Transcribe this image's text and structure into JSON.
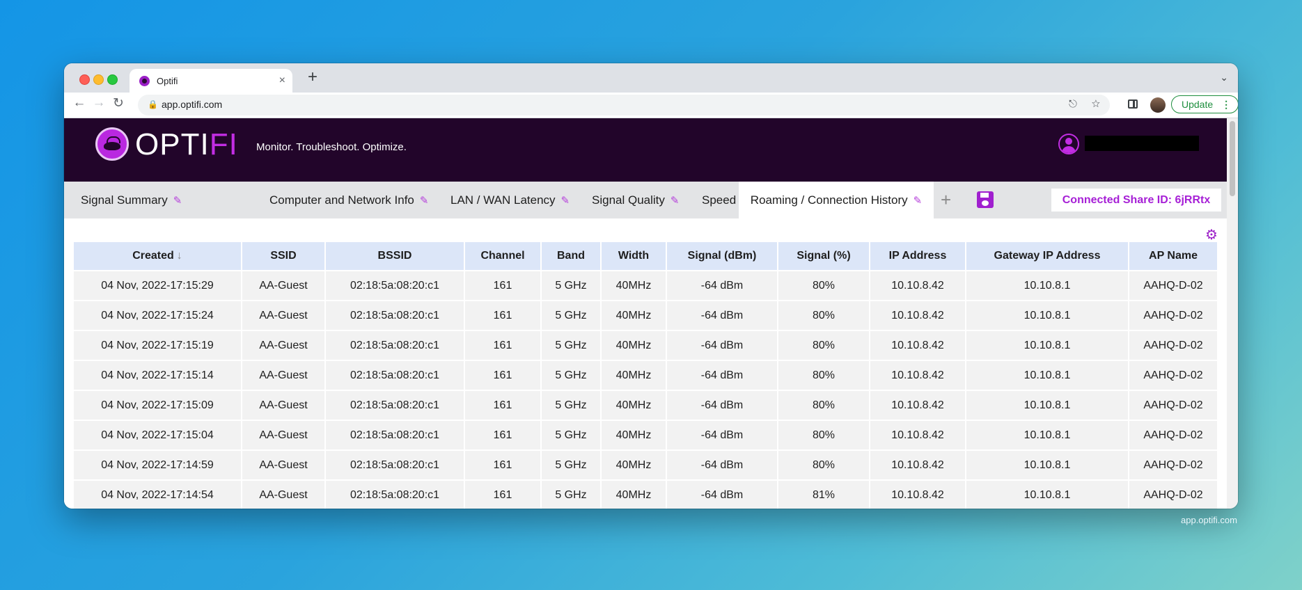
{
  "browser": {
    "tab_title": "Optifi",
    "tab_close": "×",
    "new_tab": "+",
    "url": "app.optifi.com",
    "update_label": "Update"
  },
  "header": {
    "logo_opt": "OPT",
    "logo_i": "I",
    "logo_fi": "FI",
    "tagline": "Monitor. Troubleshoot. Optimize."
  },
  "tabs": [
    {
      "label": "Signal Summary"
    },
    {
      "label": "Computer and Network Info"
    },
    {
      "label": "LAN / WAN Latency"
    },
    {
      "label": "Signal Quality"
    },
    {
      "label": "Speed Testing"
    },
    {
      "label": "Roaming / Connection History",
      "active": true
    }
  ],
  "share_id": "Connected Share ID: 6jRRtx",
  "table": {
    "columns": [
      "Created",
      "SSID",
      "BSSID",
      "Channel",
      "Band",
      "Width",
      "Signal (dBm)",
      "Signal (%)",
      "IP Address",
      "Gateway IP Address",
      "AP Name"
    ],
    "rows": [
      [
        "04 Nov, 2022-17:15:29",
        "AA-Guest",
        "02:18:5a:08:20:c1",
        "161",
        "5 GHz",
        "40MHz",
        "-64 dBm",
        "80%",
        "10.10.8.42",
        "10.10.8.1",
        "AAHQ-D-02"
      ],
      [
        "04 Nov, 2022-17:15:24",
        "AA-Guest",
        "02:18:5a:08:20:c1",
        "161",
        "5 GHz",
        "40MHz",
        "-64 dBm",
        "80%",
        "10.10.8.42",
        "10.10.8.1",
        "AAHQ-D-02"
      ],
      [
        "04 Nov, 2022-17:15:19",
        "AA-Guest",
        "02:18:5a:08:20:c1",
        "161",
        "5 GHz",
        "40MHz",
        "-64 dBm",
        "80%",
        "10.10.8.42",
        "10.10.8.1",
        "AAHQ-D-02"
      ],
      [
        "04 Nov, 2022-17:15:14",
        "AA-Guest",
        "02:18:5a:08:20:c1",
        "161",
        "5 GHz",
        "40MHz",
        "-64 dBm",
        "80%",
        "10.10.8.42",
        "10.10.8.1",
        "AAHQ-D-02"
      ],
      [
        "04 Nov, 2022-17:15:09",
        "AA-Guest",
        "02:18:5a:08:20:c1",
        "161",
        "5 GHz",
        "40MHz",
        "-64 dBm",
        "80%",
        "10.10.8.42",
        "10.10.8.1",
        "AAHQ-D-02"
      ],
      [
        "04 Nov, 2022-17:15:04",
        "AA-Guest",
        "02:18:5a:08:20:c1",
        "161",
        "5 GHz",
        "40MHz",
        "-64 dBm",
        "80%",
        "10.10.8.42",
        "10.10.8.1",
        "AAHQ-D-02"
      ],
      [
        "04 Nov, 2022-17:14:59",
        "AA-Guest",
        "02:18:5a:08:20:c1",
        "161",
        "5 GHz",
        "40MHz",
        "-64 dBm",
        "80%",
        "10.10.8.42",
        "10.10.8.1",
        "AAHQ-D-02"
      ],
      [
        "04 Nov, 2022-17:14:54",
        "AA-Guest",
        "02:18:5a:08:20:c1",
        "161",
        "5 GHz",
        "40MHz",
        "-64 dBm",
        "81%",
        "10.10.8.42",
        "10.10.8.1",
        "AAHQ-D-02"
      ]
    ]
  },
  "footer_url": "app.optifi.com",
  "colors": {
    "brand_purple": "#a61fd6",
    "header_bg": "#22052a",
    "table_header_bg": "#dce6f8"
  }
}
